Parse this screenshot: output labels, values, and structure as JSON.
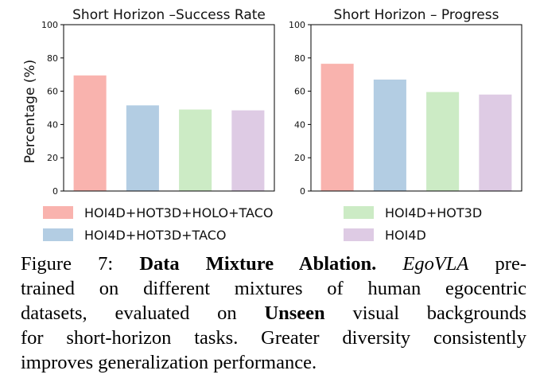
{
  "chart_data": [
    {
      "type": "bar",
      "title": "Short Horizon –Success Rate",
      "ylabel": "Percentage (%)",
      "xlabel": "",
      "ylim": [
        0,
        100
      ],
      "yticks": [
        "0",
        "20",
        "40",
        "60",
        "80",
        "100"
      ],
      "categories": [
        "HOI4D+HOT3D+HOLO+TACO",
        "HOI4D+HOT3D+TACO",
        "HOI4D+HOT3D",
        "HOI4D"
      ],
      "values": [
        69.5,
        51.5,
        49,
        48.5
      ]
    },
    {
      "type": "bar",
      "title": "Short Horizon – Progress",
      "ylabel": "",
      "xlabel": "",
      "ylim": [
        0,
        100
      ],
      "yticks": [
        "0",
        "20",
        "40",
        "60",
        "80",
        "100"
      ],
      "categories": [
        "HOI4D+HOT3D+HOLO+TACO",
        "HOI4D+HOT3D+TACO",
        "HOI4D+HOT3D",
        "HOI4D"
      ],
      "values": [
        76.5,
        67,
        59.5,
        58
      ]
    }
  ],
  "legend": {
    "items": [
      {
        "label": "HOI4D+HOT3D+HOLO+TACO",
        "color": "#f9b3ae"
      },
      {
        "label": "HOI4D+HOT3D+TACO",
        "color": "#b3cde3"
      },
      {
        "label": "HOI4D+HOT3D",
        "color": "#ccebc5"
      },
      {
        "label": "HOI4D",
        "color": "#decbe4"
      }
    ]
  },
  "caption": {
    "prefix": "Figure 7: ",
    "bold_title": "Data Mixture Ablation.",
    "italic_model": "EgoVLA",
    "l1_rest": " pre-",
    "l2": "trained on different mixtures of human egocentric",
    "l3_pre": "datasets, evaluated on ",
    "l3_bold": "Unseen",
    "l3_post": " visual backgrounds",
    "l4": "for short-horizon tasks. Greater diversity consistently",
    "l5": "improves generalization performance."
  }
}
